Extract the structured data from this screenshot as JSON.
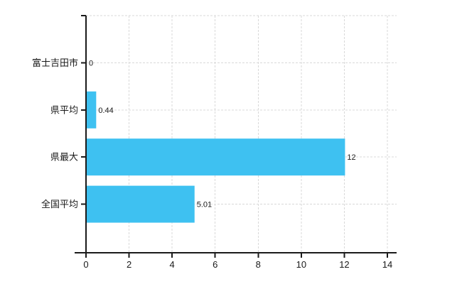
{
  "chart_data": {
    "type": "bar",
    "orientation": "horizontal",
    "title": "",
    "xlabel": "",
    "ylabel": "",
    "categories": [
      "富士吉田市",
      "県平均",
      "県最大",
      "全国平均"
    ],
    "values": [
      0,
      0.44,
      12,
      5.01
    ],
    "value_labels": [
      "0",
      "0.44",
      "12",
      "5.01"
    ],
    "xlim": [
      0,
      14
    ],
    "xticks": [
      0,
      2,
      4,
      6,
      8,
      10,
      12,
      14
    ],
    "xtick_labels": [
      "0",
      "2",
      "4",
      "6",
      "8",
      "10",
      "12",
      "14"
    ],
    "grid": true,
    "grid_style": "dashed",
    "legend": false,
    "bar_color": "#3ec1f1",
    "axis_color": "#1a1a1a",
    "grid_color": "#d9d9d9",
    "text_color": "#1a1a1a"
  }
}
